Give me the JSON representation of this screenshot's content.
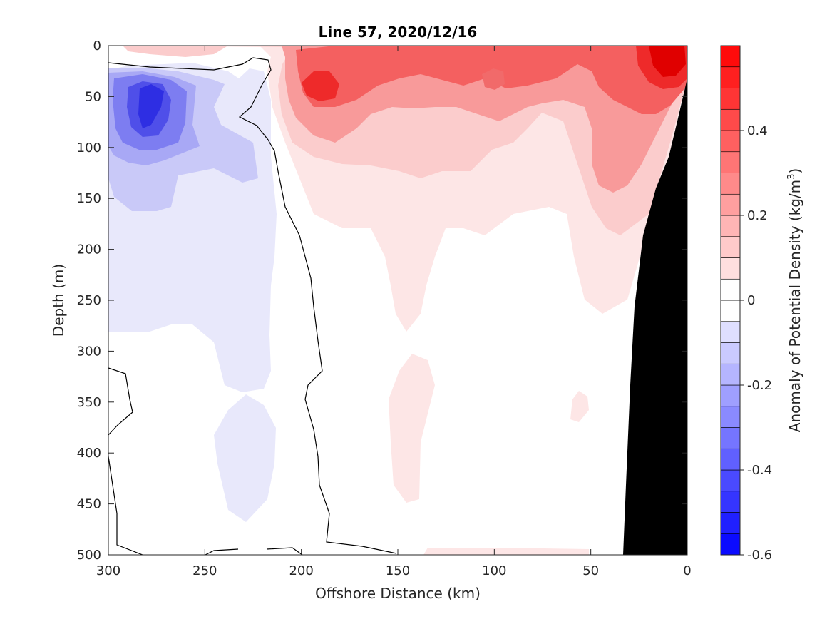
{
  "chart_data": {
    "type": "heatmap",
    "subtype": "filled-contour section",
    "title": "Line 57, 2020/12/16",
    "xlabel": "Offshore Distance (km)",
    "ylabel": "Depth (m)",
    "xlim": [
      300,
      0
    ],
    "ylim": [
      500,
      0
    ],
    "x_reversed": true,
    "y_reversed": true,
    "xticks": [
      300,
      250,
      200,
      150,
      100,
      50,
      0
    ],
    "yticks": [
      0,
      50,
      100,
      150,
      200,
      250,
      300,
      350,
      400,
      450,
      500
    ],
    "xtick_labels": [
      "300",
      "250",
      "200",
      "150",
      "100",
      "50",
      "0"
    ],
    "ytick_labels": [
      "0",
      "50",
      "100",
      "150",
      "200",
      "250",
      "300",
      "350",
      "400",
      "450",
      "500"
    ],
    "colorbar": {
      "label_main": "Anomaly of Potential Density (kg/m",
      "label_sup": "3",
      "label_close": ")",
      "range": [
        -0.6,
        0.6
      ],
      "levels": [
        -0.6,
        -0.55,
        -0.5,
        -0.45,
        -0.4,
        -0.35,
        -0.3,
        -0.25,
        -0.2,
        -0.15,
        -0.1,
        -0.05,
        0,
        0.05,
        0.1,
        0.15,
        0.2,
        0.25,
        0.3,
        0.35,
        0.4,
        0.45,
        0.5,
        0.55,
        0.6
      ],
      "ticks": [
        -0.6,
        -0.4,
        -0.2,
        0,
        0.2,
        0.4
      ],
      "tick_labels": [
        "-0.6",
        "-0.4",
        "-0.2",
        "0",
        "0.2",
        "0.4"
      ],
      "colormap": "blue-white-red"
    },
    "contour_line": "zero anomaly",
    "regions": [
      {
        "name": "offshore-fresh-anomaly",
        "x": [
          [
            300,
            25
          ],
          [
            285,
            22
          ],
          [
            255,
            28
          ],
          [
            240,
            45
          ],
          [
            230,
            80
          ],
          [
            225,
            100
          ],
          [
            215,
            95
          ],
          [
            215,
            140
          ],
          [
            213,
            200
          ],
          [
            213,
            300
          ],
          [
            222,
            330
          ],
          [
            230,
            345
          ],
          [
            240,
            300
          ],
          [
            260,
            270
          ],
          [
            285,
            280
          ],
          [
            300,
            280
          ]
        ],
        "level": -0.1
      },
      {
        "name": "deep-fresh-lens",
        "x": [
          [
            230,
            340
          ],
          [
            215,
            370
          ],
          [
            215,
            430
          ],
          [
            228,
            470
          ],
          [
            240,
            440
          ],
          [
            245,
            390
          ],
          [
            240,
            350
          ]
        ],
        "level": -0.05
      },
      {
        "name": "core-fresh-anomaly",
        "x": [
          [
            295,
            32
          ],
          [
            280,
            28
          ],
          [
            262,
            38
          ],
          [
            258,
            70
          ],
          [
            270,
            92
          ],
          [
            290,
            98
          ],
          [
            300,
            92
          ]
        ],
        "level": -0.35
      },
      {
        "name": "nearshore-dense-anomaly",
        "x": [
          [
            215,
            0
          ],
          [
            190,
            20
          ],
          [
            150,
            15
          ],
          [
            110,
            5
          ],
          [
            70,
            0
          ],
          [
            0,
            0
          ],
          [
            0,
            35
          ],
          [
            30,
            190
          ],
          [
            45,
            260
          ],
          [
            65,
            170
          ],
          [
            95,
            160
          ],
          [
            115,
            180
          ],
          [
            140,
            240
          ],
          [
            150,
            260
          ],
          [
            170,
            250
          ],
          [
            185,
            180
          ],
          [
            205,
            170
          ],
          [
            218,
            120
          ],
          [
            220,
            40
          ]
        ],
        "level": 0.1
      },
      {
        "name": "core-dense-anomaly-west",
        "x": [
          [
            195,
            40
          ],
          [
            182,
            32
          ],
          [
            173,
            45
          ],
          [
            182,
            58
          ],
          [
            193,
            55
          ]
        ],
        "level": 0.35
      },
      {
        "name": "core-dense-anomaly-coast",
        "x": [
          [
            25,
            0
          ],
          [
            0,
            0
          ],
          [
            0,
            40
          ],
          [
            10,
            50
          ],
          [
            25,
            35
          ]
        ],
        "level": 0.5
      },
      {
        "name": "deep-dense-lens",
        "x": [
          [
            150,
            330
          ],
          [
            135,
            310
          ],
          [
            130,
            370
          ],
          [
            140,
            440
          ],
          [
            148,
            430
          ]
        ],
        "level": 0.05
      }
    ],
    "bathymetry": {
      "name": "shelf-slope",
      "points": [
        [
          0,
          35
        ],
        [
          10,
          80
        ],
        [
          20,
          145
        ],
        [
          25,
          200
        ],
        [
          30,
          340
        ],
        [
          33,
          500
        ],
        [
          0,
          500
        ]
      ]
    }
  }
}
